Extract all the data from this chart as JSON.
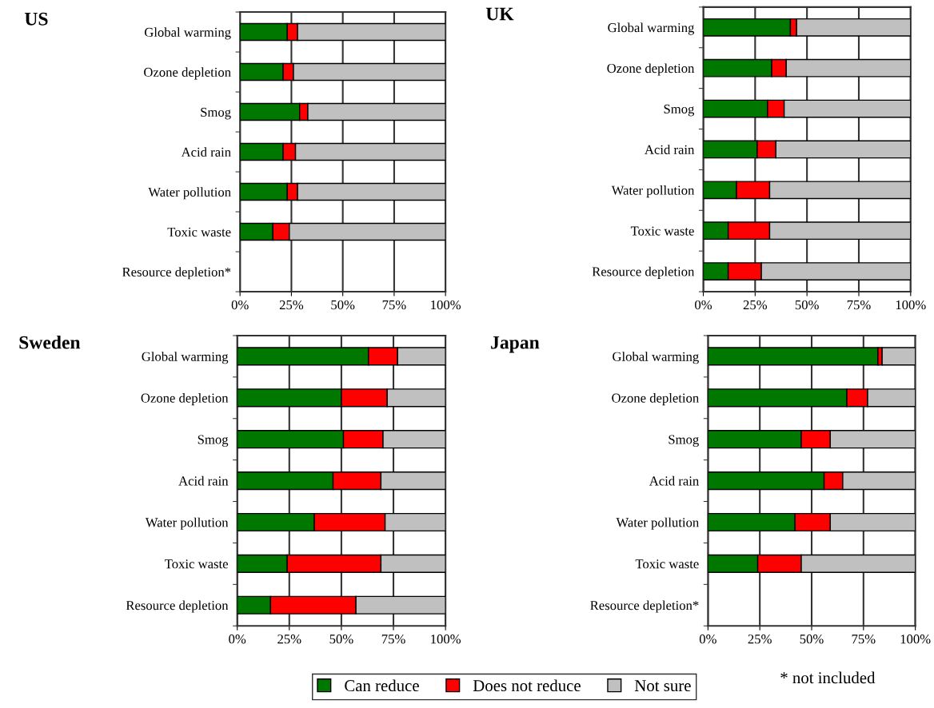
{
  "chart_data": [
    {
      "type": "bar",
      "orientation": "horizontal",
      "stacked": true,
      "title": "US",
      "categories": [
        "Global warming",
        "Ozone depletion",
        "Smog",
        "Acid rain",
        "Water pollution",
        "Toxic waste",
        "Resource depletion*"
      ],
      "legend": "bottom",
      "series": [
        {
          "name": "Can reduce",
          "color": "#007800",
          "values": [
            23,
            21,
            29,
            21,
            23,
            16,
            null
          ]
        },
        {
          "name": "Does not reduce",
          "color": "#ff0000",
          "values": [
            5,
            5,
            4,
            6,
            5,
            8,
            null
          ]
        },
        {
          "name": "Not sure",
          "color": "#c0c0c0",
          "values": [
            72,
            74,
            67,
            73,
            72,
            76,
            null
          ]
        }
      ],
      "xlim": [
        0,
        100
      ],
      "xticks": [
        {
          "value": 0,
          "label": "0%"
        },
        {
          "value": 25,
          "label": "25%"
        },
        {
          "value": 50,
          "label": "50%"
        },
        {
          "value": 75,
          "label": "75%"
        },
        {
          "value": 100,
          "label": "100%"
        }
      ],
      "grid": "x"
    },
    {
      "type": "bar",
      "orientation": "horizontal",
      "stacked": true,
      "title": "UK",
      "categories": [
        "Global warming",
        "Ozone depletion",
        "Smog",
        "Acid rain",
        "Water pollution",
        "Toxic waste",
        "Resource depletion"
      ],
      "series": [
        {
          "name": "Can reduce",
          "color": "#007800",
          "values": [
            42,
            33,
            31,
            26,
            16,
            12,
            12
          ]
        },
        {
          "name": "Does not reduce",
          "color": "#ff0000",
          "values": [
            3,
            7,
            8,
            9,
            16,
            20,
            16
          ]
        },
        {
          "name": "Not sure",
          "color": "#c0c0c0",
          "values": [
            55,
            60,
            61,
            65,
            68,
            68,
            72
          ]
        }
      ],
      "xlim": [
        0,
        100
      ],
      "xticks": [
        {
          "value": 0,
          "label": "0%"
        },
        {
          "value": 25,
          "label": "25%"
        },
        {
          "value": 50,
          "label": "50%"
        },
        {
          "value": 75,
          "label": "75%"
        },
        {
          "value": 100,
          "label": "100%"
        }
      ],
      "grid": "x"
    },
    {
      "type": "bar",
      "orientation": "horizontal",
      "stacked": true,
      "title": "Sweden",
      "categories": [
        "Global warming",
        "Ozone depletion",
        "Smog",
        "Acid rain",
        "Water pollution",
        "Toxic waste",
        "Resource depletion"
      ],
      "series": [
        {
          "name": "Can reduce",
          "color": "#007800",
          "values": [
            63,
            50,
            51,
            46,
            37,
            24,
            16
          ]
        },
        {
          "name": "Does not reduce",
          "color": "#ff0000",
          "values": [
            14,
            22,
            19,
            23,
            34,
            45,
            41
          ]
        },
        {
          "name": "Not sure",
          "color": "#c0c0c0",
          "values": [
            23,
            28,
            30,
            31,
            29,
            31,
            43
          ]
        }
      ],
      "xlim": [
        0,
        100
      ],
      "xticks": [
        {
          "value": 0,
          "label": "0%"
        },
        {
          "value": 25,
          "label": "25%"
        },
        {
          "value": 50,
          "label": "50%"
        },
        {
          "value": 75,
          "label": "75%"
        },
        {
          "value": 100,
          "label": "100%"
        }
      ],
      "grid": "x"
    },
    {
      "type": "bar",
      "orientation": "horizontal",
      "stacked": true,
      "title": "Japan",
      "categories": [
        "Global warming",
        "Ozone depletion",
        "Smog",
        "Acid rain",
        "Water pollution",
        "Toxic waste",
        "Resource depletion*"
      ],
      "series": [
        {
          "name": "Can reduce",
          "color": "#007800",
          "values": [
            82,
            67,
            45,
            56,
            42,
            24,
            null
          ]
        },
        {
          "name": "Does not reduce",
          "color": "#ff0000",
          "values": [
            2,
            10,
            14,
            9,
            17,
            21,
            null
          ]
        },
        {
          "name": "Not sure",
          "color": "#c0c0c0",
          "values": [
            16,
            23,
            41,
            35,
            41,
            55,
            null
          ]
        }
      ],
      "xlim": [
        0,
        100
      ],
      "xticks": [
        {
          "value": 0,
          "label": "0%"
        },
        {
          "value": 25,
          "label": "25%"
        },
        {
          "value": 50,
          "label": "50%"
        },
        {
          "value": 75,
          "label": "75%"
        },
        {
          "value": 100,
          "label": "100%"
        }
      ],
      "grid": "x",
      "annotations": [
        "* not included"
      ]
    }
  ]
}
